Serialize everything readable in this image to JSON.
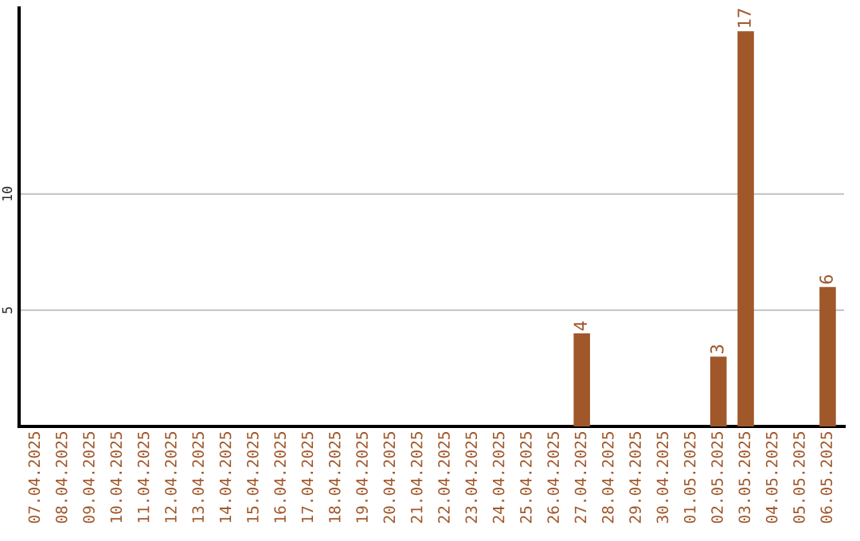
{
  "chart_data": {
    "type": "bar",
    "categories": [
      "07.04.2025",
      "08.04.2025",
      "09.04.2025",
      "10.04.2025",
      "11.04.2025",
      "12.04.2025",
      "13.04.2025",
      "14.04.2025",
      "15.04.2025",
      "16.04.2025",
      "17.04.2025",
      "18.04.2025",
      "19.04.2025",
      "20.04.2025",
      "21.04.2025",
      "22.04.2025",
      "23.04.2025",
      "24.04.2025",
      "25.04.2025",
      "26.04.2025",
      "27.04.2025",
      "28.04.2025",
      "29.04.2025",
      "30.04.2025",
      "01.05.2025",
      "02.05.2025",
      "03.05.2025",
      "04.05.2025",
      "05.05.2025",
      "06.05.2025"
    ],
    "values": [
      0,
      0,
      0,
      0,
      0,
      0,
      0,
      0,
      0,
      0,
      0,
      0,
      0,
      0,
      0,
      0,
      0,
      0,
      0,
      0,
      4,
      0,
      0,
      0,
      0,
      3,
      17,
      0,
      0,
      6
    ],
    "value_labels": [
      null,
      null,
      null,
      null,
      null,
      null,
      null,
      null,
      null,
      null,
      null,
      null,
      null,
      null,
      null,
      null,
      null,
      null,
      null,
      null,
      "4",
      null,
      null,
      null,
      null,
      "3",
      "17",
      null,
      null,
      "6"
    ],
    "color": "#a0572a",
    "ylim": [
      0,
      18
    ],
    "yticks": [
      5,
      10
    ],
    "grid": "y"
  }
}
